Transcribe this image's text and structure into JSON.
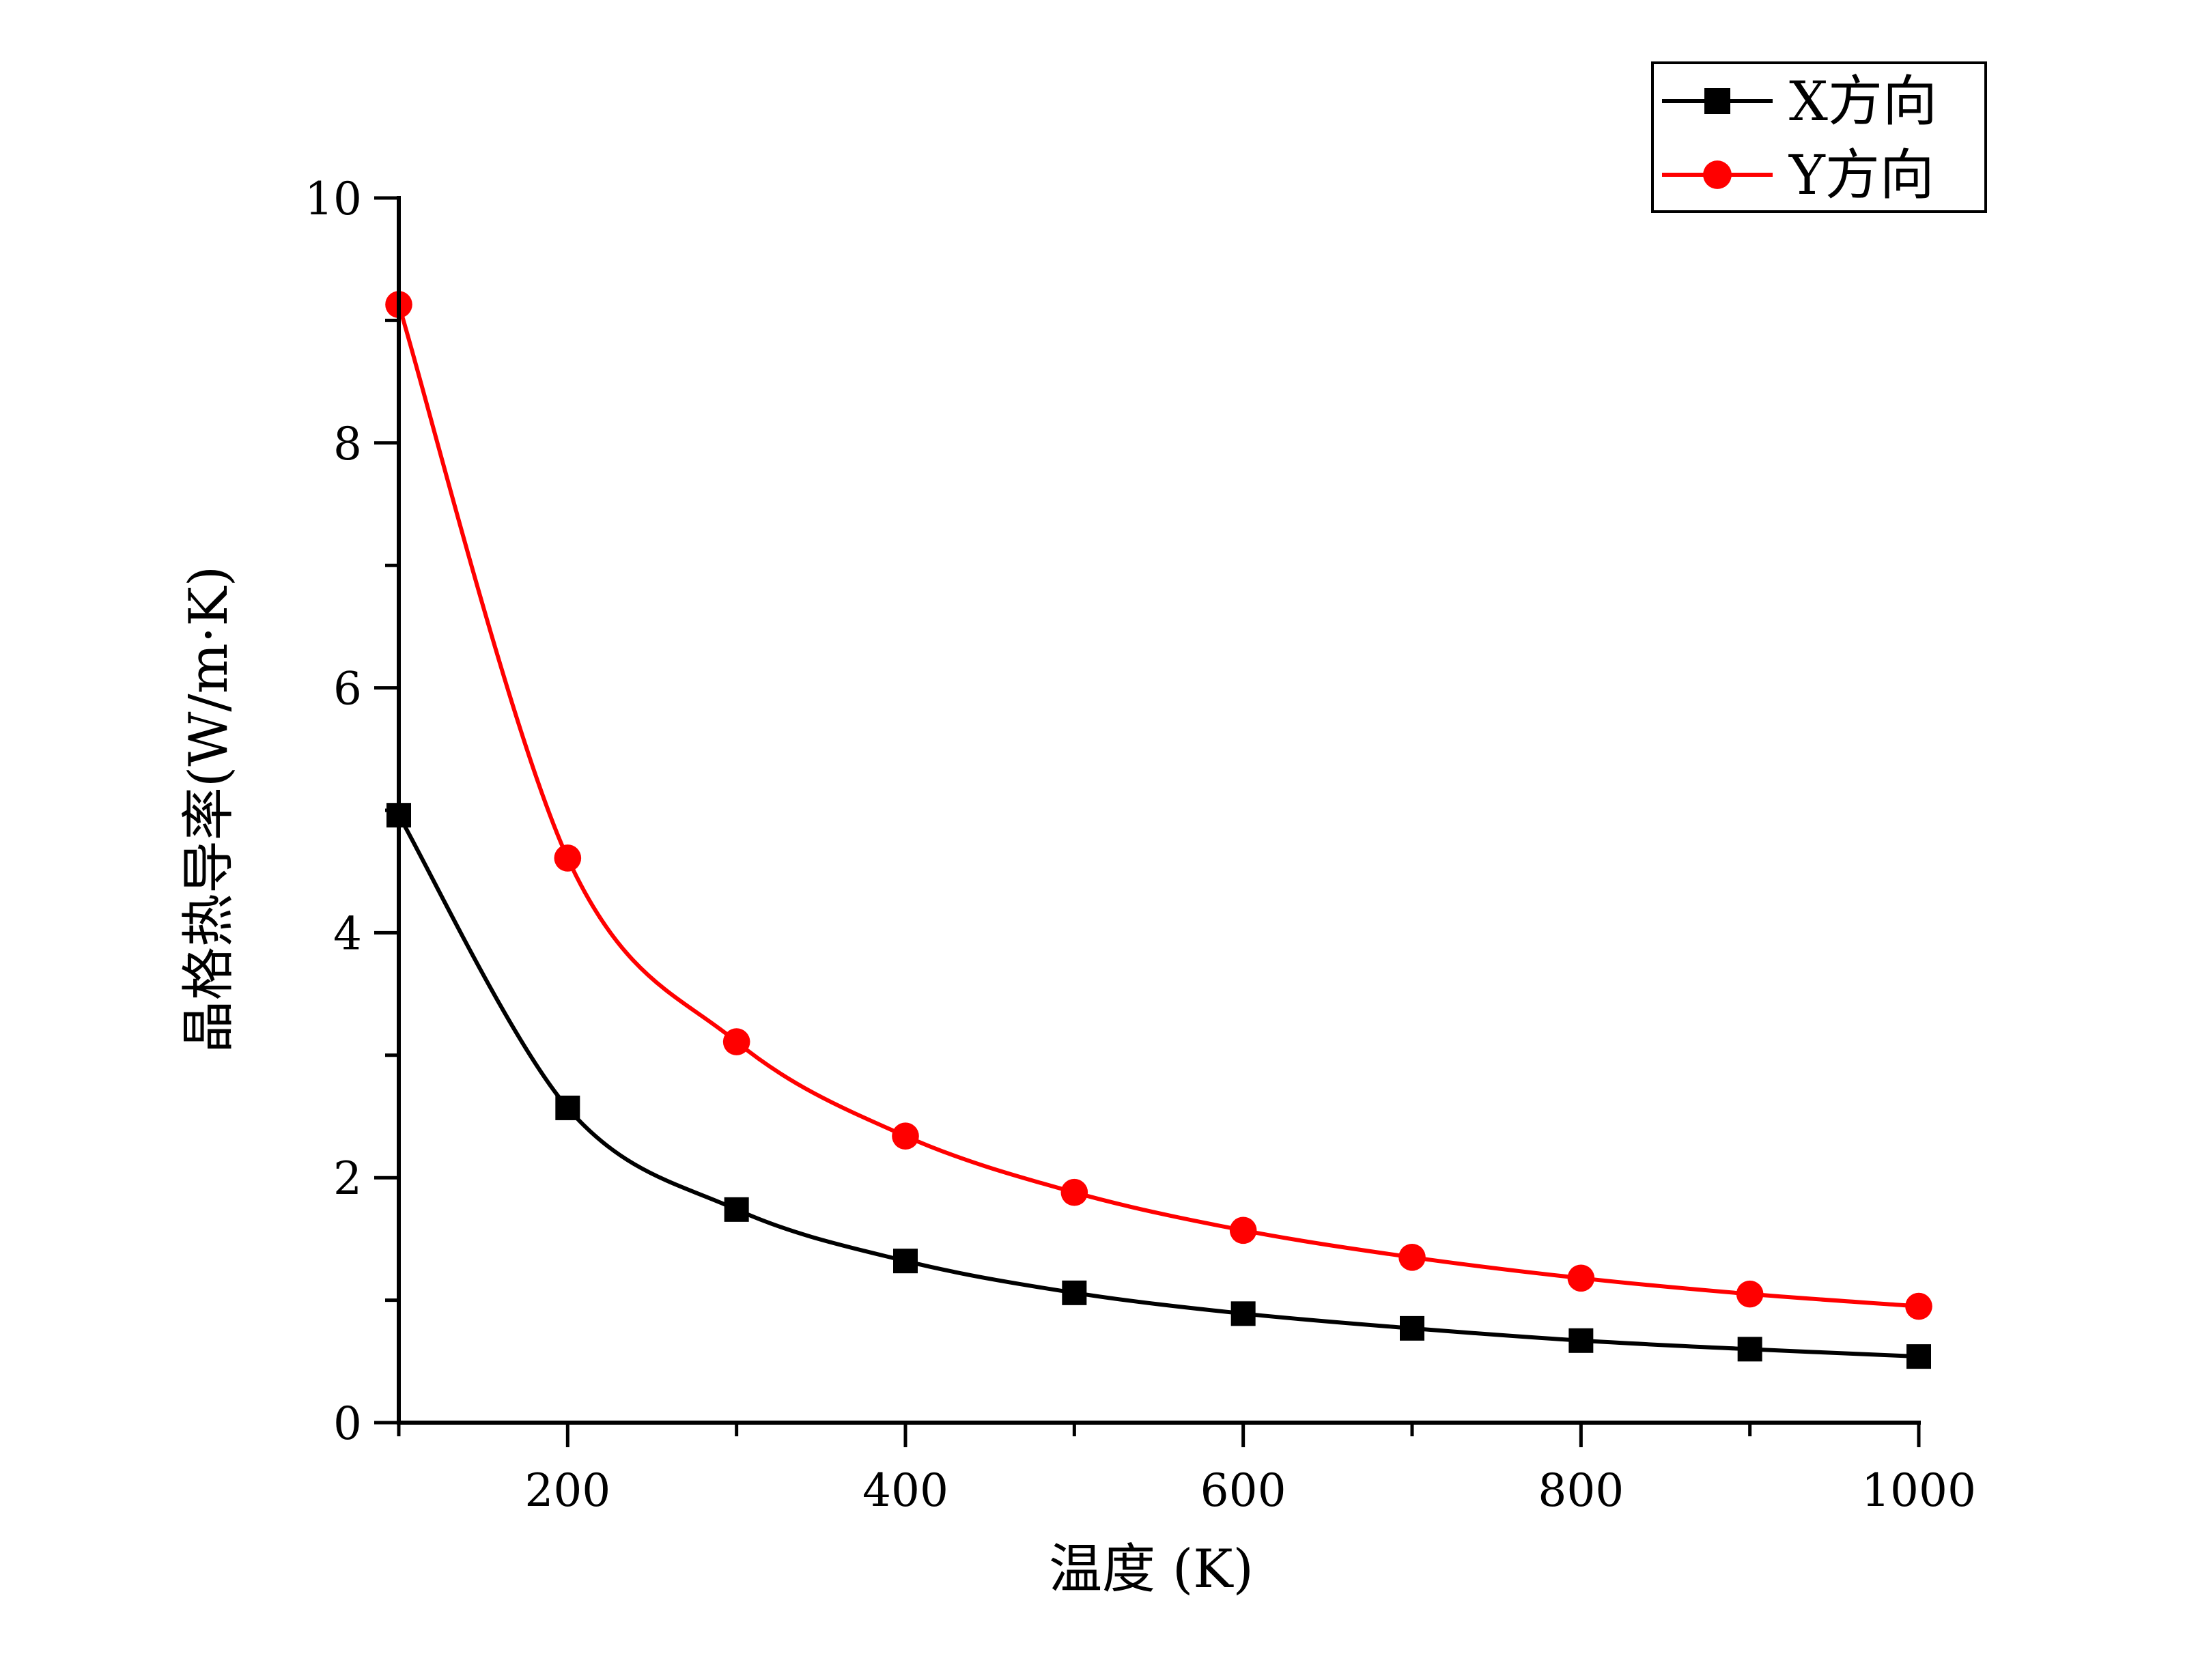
{
  "chart_data": {
    "type": "line",
    "title": "",
    "xlabel": "温度 (K)",
    "ylabel": "晶格热导率(W/m·K)",
    "xlim": [
      100,
      1000
    ],
    "ylim": [
      0,
      10
    ],
    "xticks": [
      200,
      400,
      600,
      800,
      1000
    ],
    "xtick_labels": [
      "200",
      "400",
      "600",
      "800",
      "1000"
    ],
    "yticks": [
      0,
      2,
      4,
      6,
      8,
      10
    ],
    "ytick_labels": [
      "0",
      "2",
      "4",
      "6",
      "8",
      "10"
    ],
    "grid": false,
    "legend_position": "top-right",
    "x": [
      100,
      200,
      300,
      400,
      500,
      600,
      700,
      800,
      900,
      1000
    ],
    "series": [
      {
        "name": "X方向",
        "color": "#000000",
        "marker": "square",
        "values": [
          4.96,
          2.57,
          1.74,
          1.32,
          1.06,
          0.89,
          0.77,
          0.67,
          0.6,
          0.54
        ]
      },
      {
        "name": "Y方向",
        "color": "#ff0000",
        "marker": "circle",
        "values": [
          9.13,
          4.61,
          3.11,
          2.34,
          1.88,
          1.57,
          1.35,
          1.18,
          1.05,
          0.95
        ]
      }
    ]
  }
}
